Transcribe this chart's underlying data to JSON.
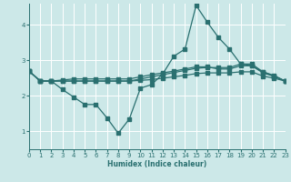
{
  "xlabel": "Humidex (Indice chaleur)",
  "background_color": "#cce8e8",
  "grid_color": "#ffffff",
  "line_color": "#2a7070",
  "x_min": 0,
  "x_max": 23,
  "y_min": 0.5,
  "y_max": 4.6,
  "yticks": [
    1,
    2,
    3,
    4
  ],
  "xticks": [
    0,
    1,
    2,
    3,
    4,
    5,
    6,
    7,
    8,
    9,
    10,
    11,
    12,
    13,
    14,
    15,
    16,
    17,
    18,
    19,
    20,
    21,
    22,
    23
  ],
  "line1_x": [
    0,
    1,
    2,
    3,
    4,
    5,
    6,
    7,
    8,
    9,
    10,
    11,
    12,
    13,
    14,
    15,
    16,
    17,
    18,
    19,
    20,
    21,
    22,
    23
  ],
  "line1_y": [
    2.7,
    2.42,
    2.42,
    2.18,
    1.97,
    1.76,
    1.76,
    1.38,
    0.95,
    1.35,
    2.22,
    2.32,
    2.62,
    3.12,
    3.32,
    4.55,
    4.08,
    3.65,
    3.32,
    2.9,
    2.85,
    2.65,
    2.55,
    2.42
  ],
  "line2_x": [
    0,
    1,
    2,
    3,
    4,
    5,
    6,
    7,
    8,
    9,
    10,
    11,
    12,
    13,
    14,
    15,
    16,
    17,
    18,
    19,
    20,
    21,
    22,
    23
  ],
  "line2_y": [
    2.7,
    2.42,
    2.42,
    2.42,
    2.42,
    2.42,
    2.42,
    2.42,
    2.42,
    2.42,
    2.48,
    2.54,
    2.6,
    2.66,
    2.72,
    2.78,
    2.8,
    2.8,
    2.8,
    2.9,
    2.9,
    2.68,
    2.56,
    2.42
  ],
  "line3_x": [
    0,
    1,
    2,
    3,
    4,
    5,
    6,
    7,
    8,
    9,
    10,
    11,
    12,
    13,
    14,
    15,
    16,
    17,
    18,
    19,
    20,
    21,
    22,
    23
  ],
  "line3_y": [
    2.7,
    2.42,
    2.42,
    2.42,
    2.42,
    2.42,
    2.42,
    2.42,
    2.42,
    2.42,
    2.44,
    2.46,
    2.5,
    2.54,
    2.58,
    2.63,
    2.65,
    2.65,
    2.65,
    2.68,
    2.68,
    2.56,
    2.5,
    2.42
  ],
  "line4_x": [
    0,
    1,
    2,
    3,
    4,
    5,
    6,
    7,
    8,
    9,
    10,
    11,
    12,
    13,
    14,
    15,
    16,
    17,
    18,
    19,
    20,
    21,
    22,
    23
  ],
  "line4_y": [
    2.7,
    2.42,
    2.42,
    2.45,
    2.48,
    2.48,
    2.48,
    2.48,
    2.48,
    2.48,
    2.54,
    2.6,
    2.65,
    2.7,
    2.76,
    2.82,
    2.82,
    2.76,
    2.76,
    2.85,
    2.85,
    2.68,
    2.58,
    2.42
  ]
}
